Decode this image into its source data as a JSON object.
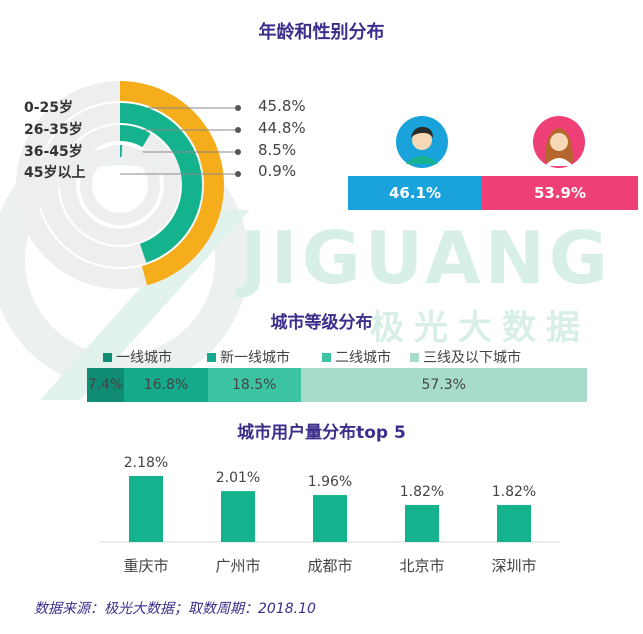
{
  "colors": {
    "title": "#3d2e8c",
    "orange": "#f6ad1b",
    "green": "#14b38e",
    "male": "#1aa3db",
    "female": "#ee3f76",
    "tier1": "#0f8c73",
    "tier2": "#17a98b",
    "tier3": "#3cc4a2",
    "tier4": "#a7dccd",
    "bar": "#14b38e"
  },
  "watermark": {
    "brand": "JIGUANG",
    "sub": "极光大数据"
  },
  "age_section": {
    "title": "年龄和性别分布",
    "groups": [
      {
        "label": "0-25岁",
        "pct": "45.8%",
        "value": 45.8
      },
      {
        "label": "26-35岁",
        "pct": "44.8%",
        "value": 44.8
      },
      {
        "label": "36-45岁",
        "pct": "8.5%",
        "value": 8.5
      },
      {
        "label": "45岁以上",
        "pct": "0.9%",
        "value": 0.9
      }
    ]
  },
  "gender": {
    "male": {
      "pct": "46.1%",
      "value": 46.1,
      "icon": "male-avatar-icon"
    },
    "female": {
      "pct": "53.9%",
      "value": 53.9,
      "icon": "female-avatar-icon"
    }
  },
  "city_tier": {
    "title": "城市等级分布",
    "legend": [
      "一线城市",
      "新一线城市",
      "二线城市",
      "三线及以下城市"
    ],
    "segments": [
      {
        "label": "7.4%",
        "value": 7.4
      },
      {
        "label": "16.8%",
        "value": 16.8
      },
      {
        "label": "18.5%",
        "value": 18.5
      },
      {
        "label": "57.3%",
        "value": 57.3
      }
    ]
  },
  "chart_data": {
    "type": "bar",
    "title": "城市用户量分布top 5",
    "categories": [
      "重庆市",
      "广州市",
      "成都市",
      "北京市",
      "深圳市"
    ],
    "values": [
      2.18,
      2.01,
      1.96,
      1.82,
      1.82
    ],
    "value_labels": [
      "2.18%",
      "2.01%",
      "1.96%",
      "1.82%",
      "1.82%"
    ],
    "unit": "%",
    "xlabel": "",
    "ylabel": ""
  },
  "footer": {
    "source": "数据来源：极光大数据；取数周期：2018.10"
  }
}
